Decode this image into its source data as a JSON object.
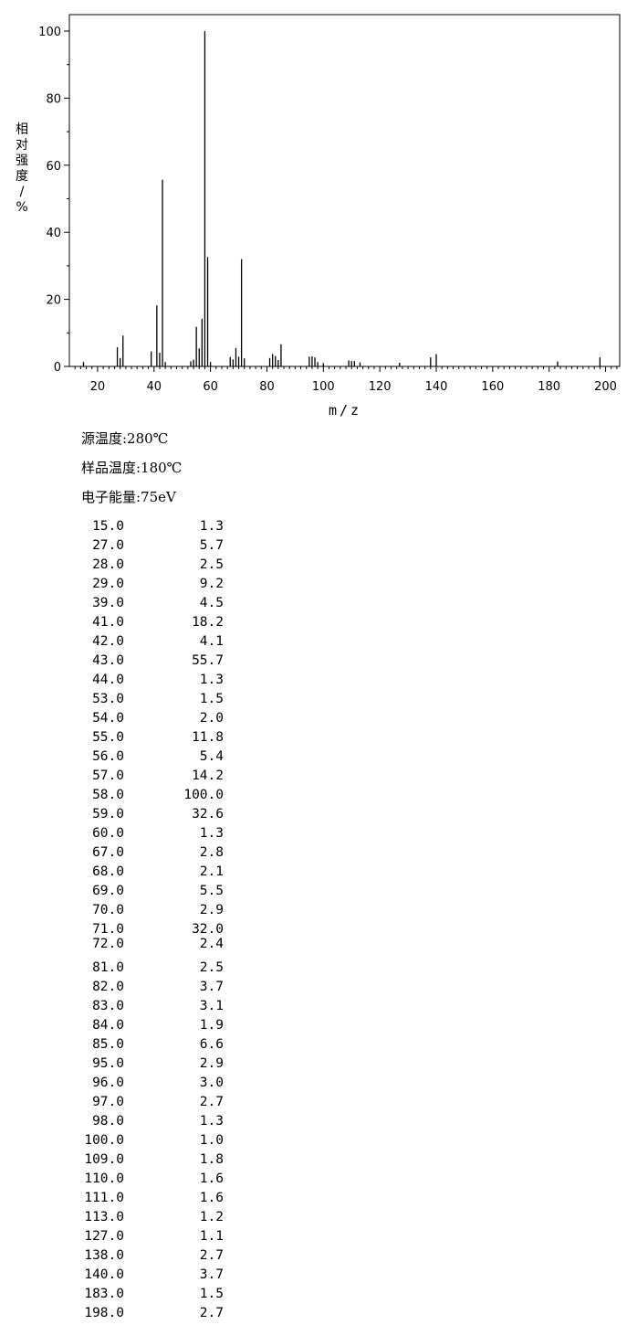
{
  "chart_data": {
    "type": "bar",
    "xlabel": "m/z",
    "ylabel": "相对强度/%",
    "xlim": [
      10,
      205
    ],
    "ylim": [
      0,
      105
    ],
    "x_ticks": [
      20,
      40,
      60,
      80,
      100,
      120,
      140,
      160,
      180,
      200
    ],
    "y_ticks": [
      0,
      20,
      40,
      60,
      80,
      100
    ],
    "grid": false,
    "x": [
      15,
      27,
      28,
      29,
      39,
      41,
      42,
      43,
      44,
      53,
      54,
      55,
      56,
      57,
      58,
      59,
      60,
      67,
      68,
      69,
      70,
      71,
      72,
      81,
      82,
      83,
      84,
      85,
      95,
      96,
      97,
      98,
      100,
      109,
      110,
      111,
      113,
      127,
      138,
      140,
      183,
      198
    ],
    "values": [
      1.3,
      5.7,
      2.5,
      9.2,
      4.5,
      18.2,
      4.1,
      55.7,
      1.3,
      1.5,
      2.0,
      11.8,
      5.4,
      14.2,
      100.0,
      32.6,
      1.3,
      2.8,
      2.1,
      5.5,
      2.9,
      32.0,
      2.4,
      2.5,
      3.7,
      3.1,
      1.9,
      6.6,
      2.9,
      3.0,
      2.7,
      1.3,
      1.0,
      1.8,
      1.6,
      1.6,
      1.2,
      1.1,
      2.7,
      3.7,
      1.5,
      2.7
    ]
  },
  "conditions": {
    "source_temp": "源温度:280℃",
    "sample_temp": "样品温度:180℃",
    "electron_energy": "电子能量:75eV"
  },
  "peaks": [
    {
      "mz": "15.0",
      "abundance": "1.3"
    },
    {
      "mz": "27.0",
      "abundance": "5.7"
    },
    {
      "mz": "28.0",
      "abundance": "2.5"
    },
    {
      "mz": "29.0",
      "abundance": "9.2"
    },
    {
      "mz": "39.0",
      "abundance": "4.5"
    },
    {
      "mz": "41.0",
      "abundance": "18.2"
    },
    {
      "mz": "42.0",
      "abundance": "4.1"
    },
    {
      "mz": "43.0",
      "abundance": "55.7"
    },
    {
      "mz": "44.0",
      "abundance": "1.3"
    },
    {
      "mz": "53.0",
      "abundance": "1.5"
    },
    {
      "mz": "54.0",
      "abundance": "2.0"
    },
    {
      "mz": "55.0",
      "abundance": "11.8"
    },
    {
      "mz": "56.0",
      "abundance": "5.4"
    },
    {
      "mz": "57.0",
      "abundance": "14.2"
    },
    {
      "mz": "58.0",
      "abundance": "100.0"
    },
    {
      "mz": "59.0",
      "abundance": "32.6"
    },
    {
      "mz": "60.0",
      "abundance": "1.3"
    },
    {
      "mz": "67.0",
      "abundance": "2.8"
    },
    {
      "mz": "68.0",
      "abundance": "2.1"
    },
    {
      "mz": "69.0",
      "abundance": "5.5"
    },
    {
      "mz": "70.0",
      "abundance": "2.9"
    },
    {
      "mz": "71.0",
      "abundance": "32.0"
    },
    {
      "mz": "72.0",
      "abundance": "2.4"
    },
    {
      "mz": "81.0",
      "abundance": "2.5"
    },
    {
      "mz": "82.0",
      "abundance": "3.7"
    },
    {
      "mz": "83.0",
      "abundance": "3.1"
    },
    {
      "mz": "84.0",
      "abundance": "1.9"
    },
    {
      "mz": "85.0",
      "abundance": "6.6"
    },
    {
      "mz": "95.0",
      "abundance": "2.9"
    },
    {
      "mz": "96.0",
      "abundance": "3.0"
    },
    {
      "mz": "97.0",
      "abundance": "2.7"
    },
    {
      "mz": "98.0",
      "abundance": "1.3"
    },
    {
      "mz": "100.0",
      "abundance": "1.0"
    },
    {
      "mz": "109.0",
      "abundance": "1.8"
    },
    {
      "mz": "110.0",
      "abundance": "1.6"
    },
    {
      "mz": "111.0",
      "abundance": "1.6"
    },
    {
      "mz": "113.0",
      "abundance": "1.2"
    },
    {
      "mz": "127.0",
      "abundance": "1.1"
    },
    {
      "mz": "138.0",
      "abundance": "2.7"
    },
    {
      "mz": "140.0",
      "abundance": "3.7"
    },
    {
      "mz": "183.0",
      "abundance": "1.5"
    },
    {
      "mz": "198.0",
      "abundance": "2.7"
    }
  ]
}
